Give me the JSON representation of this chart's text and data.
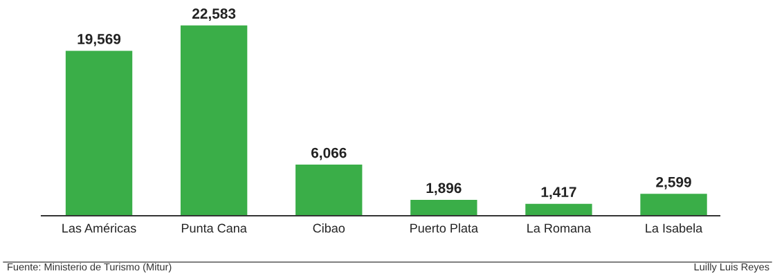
{
  "chart_data": {
    "type": "bar",
    "categories": [
      "Las Américas",
      "Punta Cana",
      "Cibao",
      "Puerto Plata",
      "La Romana",
      "La Isabela"
    ],
    "values": [
      19569,
      22583,
      6066,
      1896,
      1417,
      2599
    ],
    "value_labels": [
      "19,569",
      "22,583",
      "6,066",
      "1,896",
      "1,417",
      "2,599"
    ],
    "color": "#3aae48",
    "grid": false,
    "legend": false,
    "annotations": [
      "Fuente: Ministerio de Turismo (Mitur)",
      "Luilly Luis Reyes"
    ]
  }
}
